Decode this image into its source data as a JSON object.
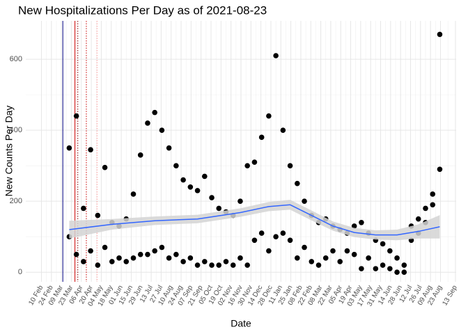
{
  "chart_data": {
    "type": "scatter",
    "title": "New Hospitalizations Per Day as of 2021-08-23",
    "x_label": "Date",
    "y_label": "New Counts Per Day",
    "x": [
      "2020-03-20",
      "2020-03-30",
      "2020-04-09",
      "2020-04-19",
      "2020-04-29",
      "2020-05-09",
      "2020-05-19",
      "2020-05-29",
      "2020-06-08",
      "2020-06-18",
      "2020-06-28",
      "2020-07-08",
      "2020-07-18",
      "2020-07-28",
      "2020-08-07",
      "2020-08-17",
      "2020-08-27",
      "2020-09-06",
      "2020-09-16",
      "2020-09-26",
      "2020-10-06",
      "2020-10-16",
      "2020-10-26",
      "2020-11-05",
      "2020-11-15",
      "2020-11-25",
      "2020-12-05",
      "2020-12-15",
      "2020-12-25",
      "2021-01-04",
      "2021-01-14",
      "2021-01-24",
      "2021-02-03",
      "2021-02-13",
      "2021-02-23",
      "2021-03-05",
      "2021-03-15",
      "2021-03-25",
      "2021-04-04",
      "2021-04-14",
      "2021-04-24",
      "2021-05-04",
      "2021-05-14",
      "2021-05-24",
      "2021-06-03",
      "2021-06-13",
      "2021-06-23",
      "2021-07-03",
      "2021-07-13",
      "2021-07-23",
      "2021-08-02",
      "2021-08-12",
      "2021-08-22"
    ],
    "series": [
      {
        "color": "#000000",
        "values": [
          350,
          440,
          180,
          345,
          160,
          295,
          140,
          130,
          150,
          220,
          330,
          420,
          450,
          400,
          350,
          300,
          260,
          240,
          230,
          270,
          210,
          180,
          170,
          160,
          200,
          300,
          310,
          380,
          440,
          610,
          400,
          300,
          250,
          200,
          160,
          140,
          150,
          130,
          120,
          110,
          130,
          140,
          110,
          90,
          80,
          60,
          40,
          20,
          130,
          150,
          180,
          220,
          670
        ]
      },
      {
        "color": "#000000",
        "values": [
          100,
          50,
          30,
          60,
          20,
          70,
          30,
          40,
          30,
          40,
          50,
          50,
          60,
          70,
          40,
          50,
          30,
          40,
          20,
          30,
          20,
          20,
          30,
          20,
          40,
          20,
          90,
          110,
          60,
          100,
          110,
          90,
          40,
          70,
          30,
          20,
          40,
          60,
          30,
          60,
          50,
          10,
          40,
          10,
          20,
          10,
          0,
          0,
          90,
          110,
          140,
          190,
          290
        ]
      }
    ],
    "smooth": {
      "color": "#3366ff",
      "band_color": "#d3d3d3",
      "x": [
        "2020-03-20",
        "2020-05-19",
        "2020-07-18",
        "2020-09-16",
        "2020-11-15",
        "2020-12-25",
        "2021-01-24",
        "2021-02-23",
        "2021-03-25",
        "2021-04-24",
        "2021-05-24",
        "2021-06-23",
        "2021-07-23",
        "2021-08-22"
      ],
      "values": [
        120,
        135,
        145,
        150,
        168,
        185,
        190,
        160,
        130,
        112,
        105,
        105,
        115,
        128
      ],
      "lower": [
        95,
        120,
        133,
        138,
        156,
        172,
        176,
        146,
        117,
        99,
        92,
        90,
        95,
        95
      ],
      "upper": [
        145,
        150,
        157,
        162,
        180,
        198,
        204,
        174,
        143,
        125,
        118,
        120,
        135,
        161
      ]
    },
    "vlines": [
      {
        "x": "2020-03-11",
        "color": "#000080",
        "style": "solid"
      },
      {
        "x": "2020-03-28",
        "color": "#cc0000",
        "style": "solid"
      },
      {
        "x": "2020-04-01",
        "color": "#800000",
        "style": "dotted"
      },
      {
        "x": "2020-04-13",
        "color": "#cc0000",
        "style": "dotted"
      },
      {
        "x": "2020-04-28",
        "color": "#ff9999",
        "style": "dotted"
      }
    ],
    "xlim": [
      "2020-01-19",
      "2021-09-14"
    ],
    "xticks": [
      {
        "value": "2020-02-10",
        "label": "10 Feb"
      },
      {
        "value": "2020-02-24",
        "label": "24 Feb"
      },
      {
        "value": "2020-03-09",
        "label": "09 Mar"
      },
      {
        "value": "2020-03-23",
        "label": "23 Mar"
      },
      {
        "value": "2020-04-06",
        "label": "06 Apr"
      },
      {
        "value": "2020-04-20",
        "label": "20 Apr"
      },
      {
        "value": "2020-05-04",
        "label": "04 May"
      },
      {
        "value": "2020-05-18",
        "label": "18 May"
      },
      {
        "value": "2020-06-01",
        "label": "01 Jun"
      },
      {
        "value": "2020-06-15",
        "label": "15 Jun"
      },
      {
        "value": "2020-06-29",
        "label": "29 Jun"
      },
      {
        "value": "2020-07-13",
        "label": "13 Jul"
      },
      {
        "value": "2020-07-27",
        "label": "27 Jul"
      },
      {
        "value": "2020-08-10",
        "label": "10 Aug"
      },
      {
        "value": "2020-08-24",
        "label": "24 Aug"
      },
      {
        "value": "2020-09-07",
        "label": "07 Sep"
      },
      {
        "value": "2020-09-21",
        "label": "21 Sep"
      },
      {
        "value": "2020-10-05",
        "label": "05 Oct"
      },
      {
        "value": "2020-10-19",
        "label": "19 Oct"
      },
      {
        "value": "2020-11-02",
        "label": "02 Nov"
      },
      {
        "value": "2020-11-16",
        "label": "16 Nov"
      },
      {
        "value": "2020-11-30",
        "label": "30 Nov"
      },
      {
        "value": "2020-12-14",
        "label": "14 Dec"
      },
      {
        "value": "2020-12-28",
        "label": "28 Dec"
      },
      {
        "value": "2021-01-11",
        "label": "11 Jan"
      },
      {
        "value": "2021-01-25",
        "label": "25 Jan"
      },
      {
        "value": "2021-02-08",
        "label": "08 Feb"
      },
      {
        "value": "2021-02-22",
        "label": "22 Feb"
      },
      {
        "value": "2021-03-08",
        "label": "08 Mar"
      },
      {
        "value": "2021-03-22",
        "label": "22 Mar"
      },
      {
        "value": "2021-04-05",
        "label": "05 Apr"
      },
      {
        "value": "2021-04-19",
        "label": "19 Apr"
      },
      {
        "value": "2021-05-03",
        "label": "03 May"
      },
      {
        "value": "2021-05-17",
        "label": "17 May"
      },
      {
        "value": "2021-05-31",
        "label": "31 May"
      },
      {
        "value": "2021-06-14",
        "label": "14 Jun"
      },
      {
        "value": "2021-06-28",
        "label": "28 Jun"
      },
      {
        "value": "2021-07-12",
        "label": "12 Jul"
      },
      {
        "value": "2021-07-26",
        "label": "26 Jul"
      },
      {
        "value": "2021-08-09",
        "label": "09 Aug"
      },
      {
        "value": "2021-08-23",
        "label": "23 Aug"
      },
      {
        "value": "2021-09-13",
        "label": "13 Sep"
      }
    ],
    "ylim": [
      -27,
      708
    ],
    "yticks": [
      0,
      200,
      400,
      600
    ],
    "grid": true
  }
}
